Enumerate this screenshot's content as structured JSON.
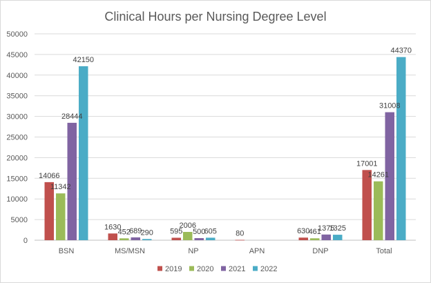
{
  "chart_data": {
    "type": "bar",
    "title": "Clinical Hours per Nursing Degree Level",
    "xlabel": "",
    "ylabel": "",
    "ylim": [
      0,
      50000
    ],
    "y_ticks": [
      0,
      5000,
      10000,
      15000,
      20000,
      25000,
      30000,
      35000,
      40000,
      45000,
      50000
    ],
    "grid": true,
    "legend_position": "bottom",
    "categories": [
      "BSN",
      "MS/MSN",
      "NP",
      "APN",
      "DNP",
      "Total"
    ],
    "series": [
      {
        "name": "2019",
        "color": "#c0504d",
        "values": [
          14066,
          1630,
          595,
          80,
          630,
          17001
        ]
      },
      {
        "name": "2020",
        "color": "#9bbb59",
        "values": [
          11342,
          452,
          2006,
          null,
          461,
          14261
        ]
      },
      {
        "name": "2021",
        "color": "#8064a2",
        "values": [
          28444,
          689,
          500,
          null,
          1375,
          31008
        ]
      },
      {
        "name": "2022",
        "color": "#4bacc6",
        "values": [
          42150,
          290,
          605,
          null,
          1325,
          44370
        ]
      }
    ],
    "gridline_color": "#d9d9d9",
    "axis_color": "#bfbfbf"
  }
}
